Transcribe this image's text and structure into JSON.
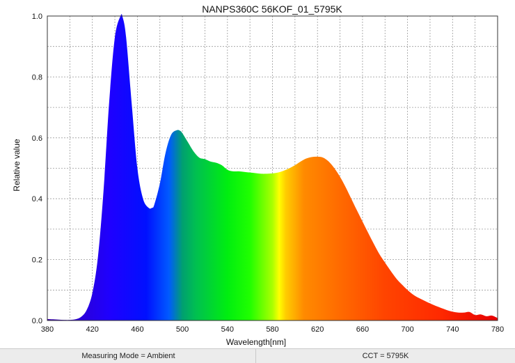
{
  "chart_data": {
    "type": "area",
    "title": "NANPS360C 56KOF_01_5795K",
    "xlabel": "Wavelength[nm]",
    "ylabel": "Relative value",
    "xlim": [
      380,
      780
    ],
    "ylim": [
      0,
      1.0
    ],
    "x_ticks": [
      380,
      420,
      460,
      500,
      540,
      580,
      620,
      660,
      700,
      740,
      780
    ],
    "y_ticks": [
      0.0,
      0.2,
      0.4,
      0.6,
      0.8,
      1.0
    ],
    "grid": true,
    "fill": "visible-spectrum gradient",
    "x": [
      380,
      385,
      390,
      395,
      400,
      405,
      410,
      415,
      420,
      425,
      430,
      435,
      440,
      445,
      447,
      450,
      455,
      460,
      465,
      470,
      473,
      475,
      480,
      485,
      490,
      495,
      498,
      500,
      505,
      510,
      515,
      520,
      525,
      530,
      535,
      540,
      545,
      550,
      555,
      560,
      565,
      570,
      575,
      580,
      585,
      590,
      595,
      600,
      605,
      610,
      615,
      620,
      625,
      630,
      635,
      640,
      645,
      650,
      655,
      660,
      665,
      670,
      675,
      680,
      685,
      690,
      695,
      700,
      705,
      710,
      715,
      720,
      725,
      730,
      735,
      740,
      745,
      750,
      755,
      760,
      765,
      770,
      775,
      780
    ],
    "y": [
      0.005,
      0.004,
      0.003,
      0.002,
      0.002,
      0.004,
      0.012,
      0.035,
      0.09,
      0.21,
      0.43,
      0.72,
      0.93,
      1.0,
      0.995,
      0.93,
      0.71,
      0.5,
      0.4,
      0.37,
      0.37,
      0.38,
      0.45,
      0.55,
      0.61,
      0.625,
      0.623,
      0.615,
      0.585,
      0.555,
      0.535,
      0.53,
      0.522,
      0.518,
      0.51,
      0.495,
      0.49,
      0.49,
      0.488,
      0.486,
      0.484,
      0.482,
      0.482,
      0.483,
      0.486,
      0.492,
      0.5,
      0.51,
      0.522,
      0.532,
      0.537,
      0.538,
      0.535,
      0.522,
      0.5,
      0.472,
      0.438,
      0.4,
      0.362,
      0.325,
      0.288,
      0.252,
      0.218,
      0.19,
      0.163,
      0.138,
      0.118,
      0.1,
      0.085,
      0.074,
      0.065,
      0.056,
      0.048,
      0.041,
      0.034,
      0.029,
      0.026,
      0.026,
      0.028,
      0.018,
      0.02,
      0.014,
      0.016,
      0.008
    ]
  },
  "status": {
    "measuring_mode": "Measuring Mode = Ambient",
    "cct": "CCT = 5795K"
  }
}
